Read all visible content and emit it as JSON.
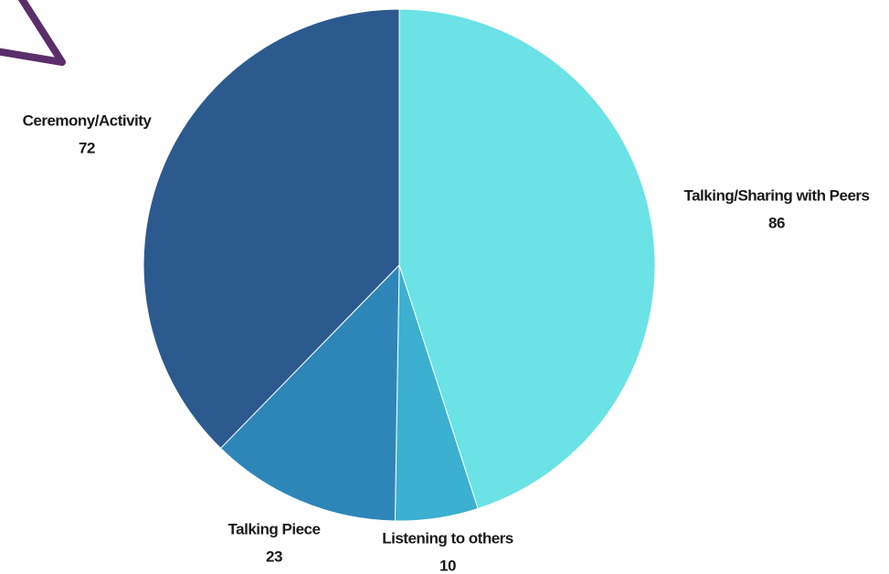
{
  "chart_data": {
    "type": "pie",
    "categories": [
      "Talking/Sharing with Peers",
      "Listening to others",
      "Talking Piece",
      "Ceremony/Activity"
    ],
    "values": [
      86,
      10,
      23,
      72
    ],
    "colors": [
      "#6ae2e6",
      "#3bb0d0",
      "#2e86b8",
      "#2d5a8e"
    ]
  }
}
